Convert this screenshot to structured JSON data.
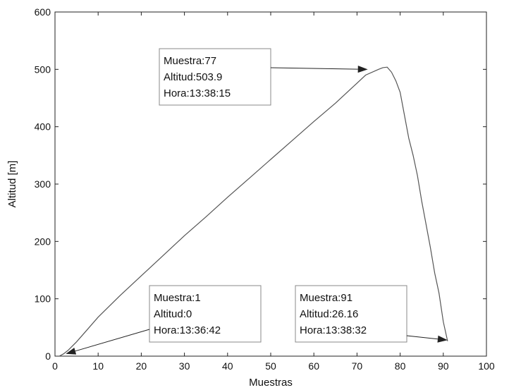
{
  "chart_data": {
    "type": "line",
    "title": "",
    "xlabel": "Muestras",
    "ylabel": "Altitud [m]",
    "xlim": [
      0,
      100
    ],
    "ylim": [
      0,
      600
    ],
    "xticks": [
      0,
      10,
      20,
      30,
      40,
      50,
      60,
      70,
      80,
      90,
      100
    ],
    "yticks": [
      0,
      100,
      200,
      300,
      400,
      500,
      600
    ],
    "grid": false,
    "legend": "none",
    "colors": {
      "line": "#555555",
      "axes": "#222222",
      "annotation": "#222222"
    },
    "series": [
      {
        "x": [
          1,
          2,
          3,
          5,
          7,
          10,
          15,
          20,
          25,
          30,
          35,
          40,
          45,
          50,
          55,
          60,
          65,
          70,
          72,
          75,
          76,
          77,
          78,
          79,
          80,
          81,
          82,
          83,
          84,
          85,
          86,
          87,
          88,
          89,
          90,
          91
        ],
        "y": [
          0,
          4,
          10,
          25,
          42,
          68,
          105,
          140,
          175,
          210,
          243,
          277,
          310,
          343,
          376,
          409,
          441,
          476,
          490,
          500,
          503,
          503.9,
          495,
          480,
          460,
          420,
          380,
          350,
          315,
          270,
          230,
          190,
          145,
          110,
          60,
          26.16
        ]
      }
    ],
    "annotations": [
      {
        "lines": [
          "Muestra:77",
          "Altitud:503.9",
          "Hora:13:38:15"
        ],
        "target": {
          "x": 72.5,
          "y": 500
        }
      },
      {
        "lines": [
          "Muestra:1",
          "Altitud:0",
          "Hora:13:36:42"
        ],
        "target": {
          "x": 2.5,
          "y": 4
        }
      },
      {
        "lines": [
          "Muestra:91",
          "Altitud:26.16",
          "Hora:13:38:32"
        ],
        "target": {
          "x": 91,
          "y": 28
        }
      }
    ]
  }
}
